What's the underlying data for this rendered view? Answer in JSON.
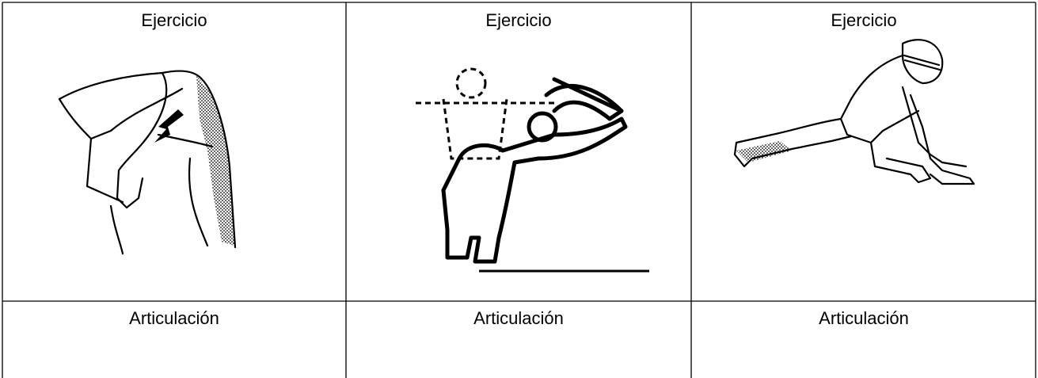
{
  "table": {
    "rows": [
      [
        "Ejercicio",
        "Ejercicio",
        "Ejercicio"
      ],
      [
        "Articulación",
        "Articulación",
        "Articulación"
      ]
    ]
  }
}
